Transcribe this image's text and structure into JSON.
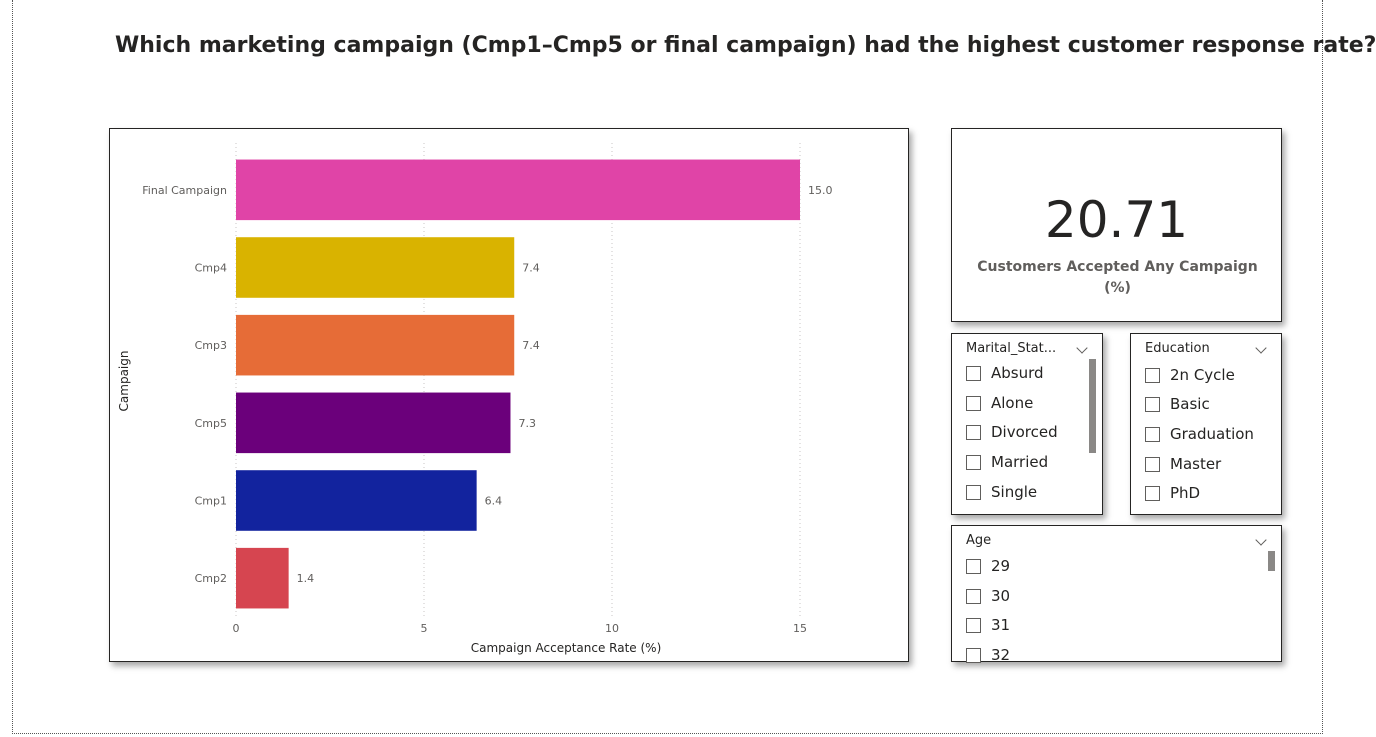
{
  "page": {
    "title": "Which marketing campaign (Cmp1–Cmp5 or final campaign) had the highest customer response rate?"
  },
  "card": {
    "value": "20.71",
    "label": "Customers Accepted Any Campaign (%)"
  },
  "slicers": {
    "marital": {
      "header": "Marital_Stat...",
      "items": [
        "Absurd",
        "Alone",
        "Divorced",
        "Married",
        "Single"
      ]
    },
    "education": {
      "header": "Education",
      "items": [
        "2n Cycle",
        "Basic",
        "Graduation",
        "Master",
        "PhD"
      ]
    },
    "age": {
      "header": "Age",
      "items": [
        "29",
        "30",
        "31",
        "32"
      ]
    }
  },
  "chart_data": {
    "type": "bar",
    "orientation": "horizontal",
    "categories": [
      "Final Campaign",
      "Cmp4",
      "Cmp3",
      "Cmp5",
      "Cmp1",
      "Cmp2"
    ],
    "values": [
      15.0,
      7.4,
      7.4,
      7.3,
      6.4,
      1.4
    ],
    "data_labels": [
      "15.0",
      "7.4",
      "7.4",
      "7.3",
      "6.4",
      "1.4"
    ],
    "colors": [
      "#E044A7",
      "#D9B300",
      "#E66C37",
      "#6B007B",
      "#12239E",
      "#D64550"
    ],
    "xlabel": "Campaign Acceptance Rate (%)",
    "ylabel": "Campaign",
    "xlim": [
      0,
      17.5
    ],
    "xticks": [
      0,
      5,
      10,
      15
    ],
    "grid": true
  }
}
